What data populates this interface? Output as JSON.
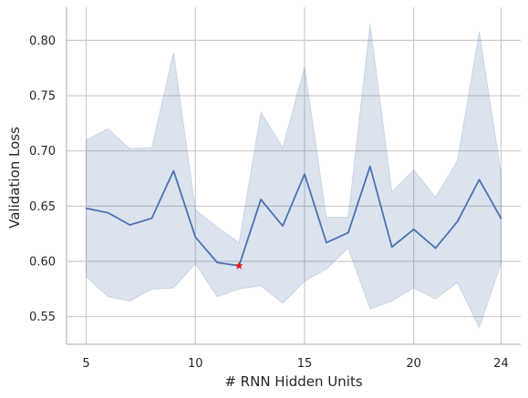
{
  "chart_data": {
    "type": "line",
    "title": "",
    "xlabel": "# RNN Hidden Units",
    "ylabel": "Validation Loss",
    "xlim": [
      4.1,
      24.9
    ],
    "ylim": [
      0.525,
      0.83
    ],
    "xticks": [
      5,
      10,
      15,
      20,
      24
    ],
    "yticks": [
      0.55,
      0.6,
      0.65,
      0.7,
      0.75,
      0.8
    ],
    "ytick_labels": [
      "0.55",
      "0.60",
      "0.65",
      "0.70",
      "0.75",
      "0.80"
    ],
    "grid": true,
    "series": [
      {
        "x": [
          5,
          6,
          7,
          8,
          9,
          10,
          11,
          12,
          13,
          14,
          15,
          16,
          17,
          18,
          19,
          20,
          21,
          22,
          23,
          24
        ],
        "mean": [
          0.648,
          0.644,
          0.633,
          0.639,
          0.682,
          0.622,
          0.599,
          0.596,
          0.656,
          0.632,
          0.679,
          0.617,
          0.626,
          0.686,
          0.613,
          0.629,
          0.612,
          0.636,
          0.674,
          0.639
        ],
        "upper": [
          0.71,
          0.72,
          0.702,
          0.703,
          0.789,
          0.647,
          0.631,
          0.617,
          0.735,
          0.703,
          0.776,
          0.64,
          0.64,
          0.815,
          0.663,
          0.683,
          0.658,
          0.691,
          0.808,
          0.68
        ],
        "lower": [
          0.586,
          0.568,
          0.564,
          0.575,
          0.576,
          0.598,
          0.568,
          0.575,
          0.578,
          0.562,
          0.582,
          0.593,
          0.612,
          0.557,
          0.564,
          0.576,
          0.566,
          0.581,
          0.54,
          0.598
        ],
        "color": "#4c72b0",
        "band_color": "#4c72b0"
      }
    ],
    "marker": {
      "x": 12,
      "y": 0.596,
      "symbol": "star",
      "color": "#e31a1c"
    }
  }
}
